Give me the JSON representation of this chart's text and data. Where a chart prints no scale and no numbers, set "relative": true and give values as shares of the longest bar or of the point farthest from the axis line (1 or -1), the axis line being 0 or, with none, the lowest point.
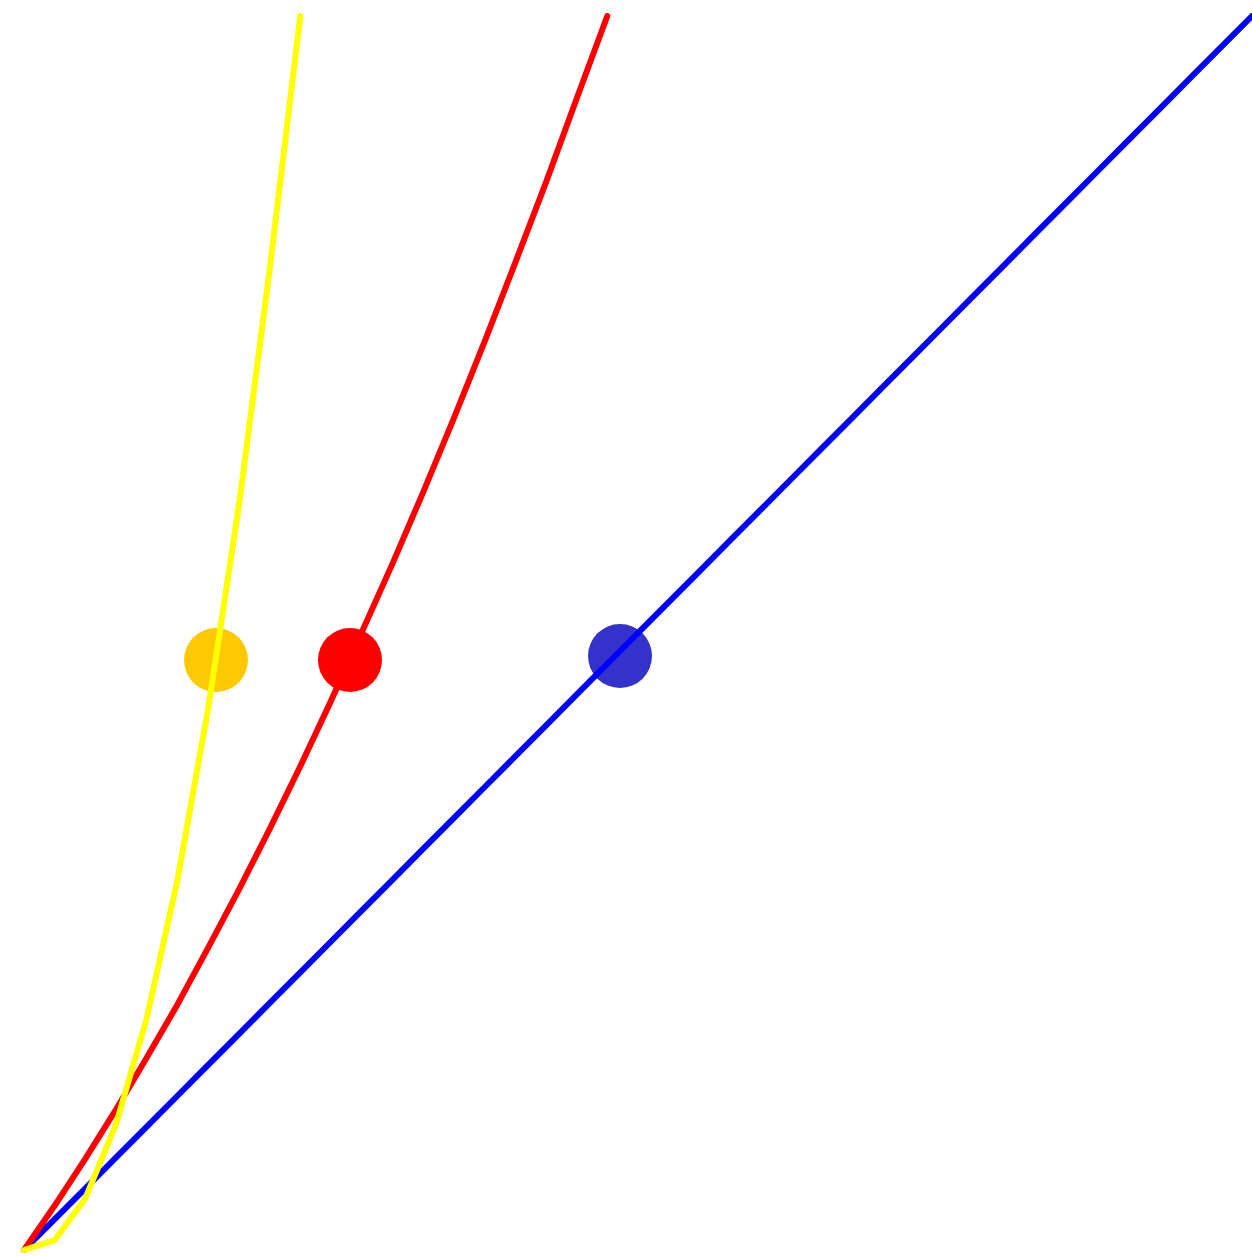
{
  "chart_data": {
    "type": "line",
    "relative": true,
    "tick_labels": false,
    "grid": false,
    "marker": "none",
    "line_style": "solid",
    "categories": [
      null,
      null,
      null,
      null,
      null,
      null,
      null,
      null,
      null,
      null,
      null,
      null,
      null,
      null,
      null,
      null,
      null,
      null,
      null,
      null,
      null,
      null,
      null,
      null,
      null,
      null,
      null,
      null,
      null,
      null,
      null,
      null,
      null,
      null,
      null,
      null,
      null,
      null,
      null,
      null,
      null
    ],
    "series": [
      {
        "color": "#0000ff",
        "values": [
          0,
          0.025,
          0.05,
          0.075,
          0.1,
          0.125,
          0.15,
          0.175,
          0.2,
          0.225,
          0.25,
          0.275,
          0.3,
          0.325,
          0.35,
          0.375,
          0.4,
          0.425,
          0.45,
          null,
          null,
          0.525,
          0.55,
          0.575,
          0.6,
          0.625,
          0.65,
          0.675,
          0.7,
          0.725,
          0.75,
          0.775,
          0.8,
          0.825,
          0.85,
          0.875,
          0.9,
          0.925,
          0.95,
          0.975,
          1
        ]
      },
      {
        "color": "#ff0000",
        "values": [
          0,
          0.036,
          0.074,
          0.114,
          0.156,
          0.199,
          0.245,
          0.292,
          0.341,
          0.392,
          0.445,
          null,
          0.556,
          0.614,
          0.674,
          0.736,
          0.8,
          0.865,
          0.933,
          1,
          null,
          null,
          null,
          null,
          null,
          null,
          null,
          null,
          null,
          null,
          null,
          null,
          null,
          null,
          null,
          null,
          null,
          null,
          null,
          null,
          null
        ]
      },
      {
        "color": "#ffff00",
        "values": [
          0,
          0.008,
          0.042,
          0.102,
          0.188,
          0.3,
          0.439,
          0.603,
          0.794,
          1,
          null,
          null,
          null,
          null,
          null,
          null,
          null,
          null,
          null,
          null,
          null,
          null,
          null,
          null,
          null,
          null,
          null,
          null,
          null,
          null,
          null,
          null,
          null,
          null,
          null,
          null,
          null,
          null,
          null,
          null,
          null
        ]
      }
    ]
  }
}
